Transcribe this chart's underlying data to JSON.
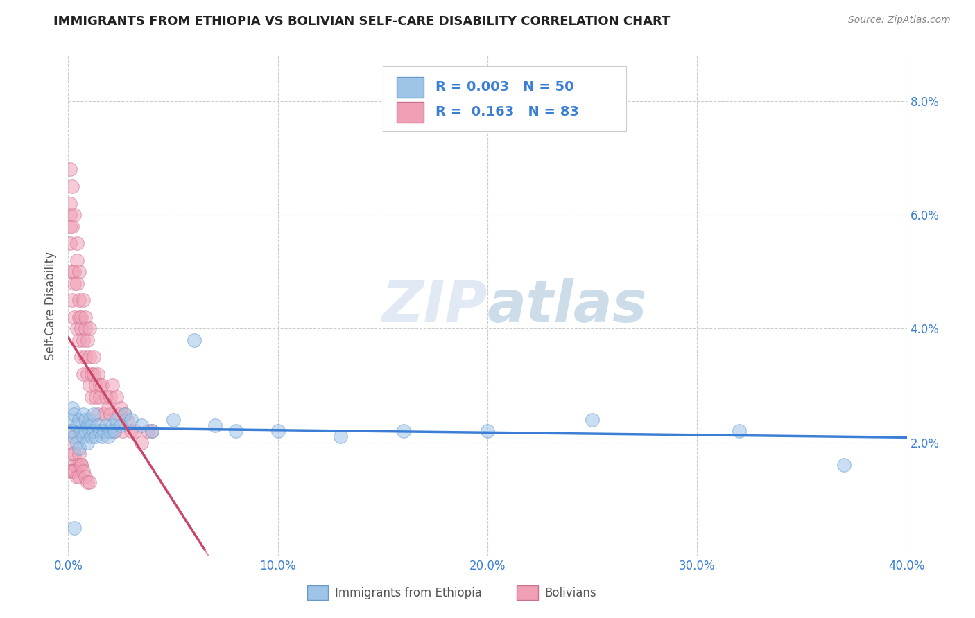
{
  "title": "IMMIGRANTS FROM ETHIOPIA VS BOLIVIAN SELF-CARE DISABILITY CORRELATION CHART",
  "source": "Source: ZipAtlas.com",
  "ylabel": "Self-Care Disability",
  "xlim": [
    0.0,
    0.4
  ],
  "ylim": [
    0.0,
    0.088
  ],
  "xticks": [
    0.0,
    0.1,
    0.2,
    0.3,
    0.4
  ],
  "xtick_labels": [
    "0.0%",
    "10.0%",
    "20.0%",
    "30.0%",
    "40.0%"
  ],
  "yticks": [
    0.02,
    0.04,
    0.06,
    0.08
  ],
  "ytick_labels": [
    "2.0%",
    "4.0%",
    "6.0%",
    "8.0%"
  ],
  "legend_R1": "0.003",
  "legend_N1": "50",
  "legend_R2": "0.163",
  "legend_N2": "83",
  "label1": "Immigrants from Ethiopia",
  "label2": "Bolivians",
  "watermark": "ZIPatlas",
  "watermark_color": "#c5d8ec",
  "background_color": "#ffffff",
  "grid_color": "#cccccc",
  "title_color": "#222222",
  "axis_label_color": "#555555",
  "tick_label_color": "#3a7fd5",
  "series1_color": "#9ec4e8",
  "series1_edge": "#6699cc",
  "series2_color": "#f0a0b5",
  "series2_edge": "#cc7090",
  "trendline1_color": "#3a7fd5",
  "trendline2_color": "#cc4466",
  "trendline2_dash_color": "#e090a8",
  "ethiopia_x": [
    0.001,
    0.002,
    0.002,
    0.003,
    0.003,
    0.004,
    0.004,
    0.005,
    0.005,
    0.006,
    0.007,
    0.007,
    0.008,
    0.008,
    0.009,
    0.009,
    0.01,
    0.01,
    0.011,
    0.011,
    0.012,
    0.012,
    0.013,
    0.014,
    0.015,
    0.016,
    0.017,
    0.018,
    0.019,
    0.02,
    0.021,
    0.022,
    0.023,
    0.025,
    0.027,
    0.03,
    0.035,
    0.04,
    0.05,
    0.06,
    0.07,
    0.08,
    0.1,
    0.13,
    0.16,
    0.2,
    0.25,
    0.32,
    0.37,
    0.003
  ],
  "ethiopia_y": [
    0.024,
    0.022,
    0.026,
    0.021,
    0.025,
    0.023,
    0.02,
    0.024,
    0.019,
    0.022,
    0.025,
    0.021,
    0.022,
    0.024,
    0.023,
    0.02,
    0.022,
    0.024,
    0.021,
    0.023,
    0.022,
    0.025,
    0.021,
    0.023,
    0.022,
    0.021,
    0.022,
    0.023,
    0.021,
    0.022,
    0.023,
    0.022,
    0.024,
    0.023,
    0.025,
    0.024,
    0.023,
    0.022,
    0.024,
    0.038,
    0.023,
    0.022,
    0.022,
    0.021,
    0.022,
    0.022,
    0.024,
    0.022,
    0.016,
    0.005
  ],
  "bolivia_x": [
    0.001,
    0.001,
    0.001,
    0.001,
    0.001,
    0.002,
    0.002,
    0.002,
    0.002,
    0.003,
    0.003,
    0.003,
    0.003,
    0.004,
    0.004,
    0.004,
    0.004,
    0.005,
    0.005,
    0.005,
    0.005,
    0.006,
    0.006,
    0.006,
    0.007,
    0.007,
    0.007,
    0.008,
    0.008,
    0.008,
    0.009,
    0.009,
    0.01,
    0.01,
    0.01,
    0.011,
    0.011,
    0.012,
    0.012,
    0.013,
    0.013,
    0.014,
    0.014,
    0.015,
    0.015,
    0.016,
    0.017,
    0.018,
    0.019,
    0.02,
    0.02,
    0.021,
    0.022,
    0.023,
    0.024,
    0.025,
    0.026,
    0.027,
    0.028,
    0.03,
    0.032,
    0.035,
    0.038,
    0.04,
    0.001,
    0.002,
    0.002,
    0.003,
    0.003,
    0.004,
    0.005,
    0.005,
    0.006,
    0.001,
    0.002,
    0.003,
    0.004,
    0.005,
    0.006,
    0.007,
    0.008,
    0.009,
    0.01
  ],
  "bolivia_y": [
    0.06,
    0.062,
    0.068,
    0.058,
    0.055,
    0.065,
    0.058,
    0.05,
    0.045,
    0.06,
    0.048,
    0.042,
    0.05,
    0.055,
    0.048,
    0.04,
    0.052,
    0.042,
    0.045,
    0.038,
    0.05,
    0.035,
    0.04,
    0.042,
    0.038,
    0.045,
    0.032,
    0.04,
    0.035,
    0.042,
    0.032,
    0.038,
    0.035,
    0.03,
    0.04,
    0.032,
    0.028,
    0.032,
    0.035,
    0.03,
    0.028,
    0.032,
    0.025,
    0.03,
    0.028,
    0.03,
    0.025,
    0.028,
    0.026,
    0.028,
    0.025,
    0.03,
    0.022,
    0.028,
    0.025,
    0.026,
    0.022,
    0.025,
    0.024,
    0.022,
    0.022,
    0.02,
    0.022,
    0.022,
    0.022,
    0.02,
    0.018,
    0.016,
    0.018,
    0.016,
    0.018,
    0.016,
    0.016,
    0.015,
    0.015,
    0.015,
    0.014,
    0.014,
    0.016,
    0.015,
    0.014,
    0.013,
    0.013
  ]
}
